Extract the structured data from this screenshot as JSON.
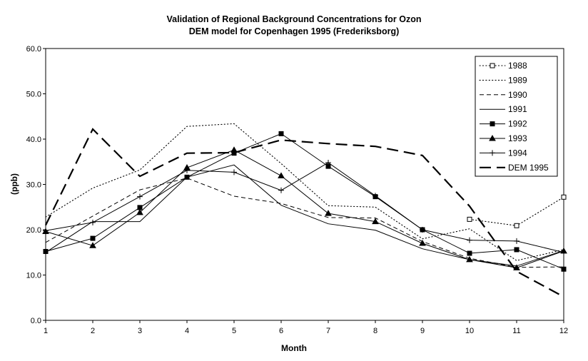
{
  "chart_data": {
    "type": "line",
    "title": "Validation of Regional Background Concentrations for Ozon",
    "subtitle": "DEM model for Copenhagen 1995 (Frederiksborg)",
    "xlabel": "Month",
    "ylabel": "(ppb)",
    "xlim": [
      1,
      12
    ],
    "ylim": [
      0,
      60
    ],
    "x": [
      1,
      2,
      3,
      4,
      5,
      6,
      7,
      8,
      9,
      10,
      11,
      12
    ],
    "x_ticks": [
      "1",
      "2",
      "3",
      "4",
      "5",
      "6",
      "7",
      "8",
      "9",
      "10",
      "11",
      "12"
    ],
    "y_ticks": [
      "0.0",
      "10.0",
      "20.0",
      "30.0",
      "40.0",
      "50.0",
      "60.0"
    ],
    "y_tick_values": [
      0,
      10,
      20,
      30,
      40,
      50,
      60
    ],
    "grid": false,
    "legend_position": "top-right",
    "series": [
      {
        "name": "1988",
        "style": "dotted",
        "marker": "square-open",
        "values": [
          null,
          null,
          null,
          null,
          null,
          null,
          null,
          null,
          null,
          22.3,
          20.9,
          27.2
        ]
      },
      {
        "name": "1989",
        "style": "dotted",
        "marker": "none",
        "values": [
          22.8,
          29.2,
          33.2,
          42.8,
          43.4,
          34.6,
          25.3,
          25.0,
          18.0,
          20.2,
          13.2,
          15.6
        ]
      },
      {
        "name": "1990",
        "style": "dashed",
        "marker": "none",
        "values": [
          17.2,
          23.0,
          28.8,
          31.4,
          27.4,
          25.8,
          22.7,
          22.6,
          17.4,
          13.7,
          11.7,
          11.8
        ]
      },
      {
        "name": "1991",
        "style": "solid",
        "marker": "none",
        "values": [
          15.0,
          21.8,
          21.8,
          31.6,
          34.3,
          25.4,
          21.3,
          19.9,
          15.8,
          13.4,
          12.0,
          15.4
        ]
      },
      {
        "name": "1992",
        "style": "solid",
        "marker": "square-filled",
        "values": [
          15.2,
          18.1,
          24.9,
          31.6,
          36.9,
          41.2,
          34.0,
          27.3,
          20.0,
          14.8,
          15.6,
          11.3
        ]
      },
      {
        "name": "1993",
        "style": "solid",
        "marker": "triangle-filled",
        "values": [
          19.6,
          16.5,
          23.8,
          33.7,
          37.6,
          31.9,
          23.6,
          21.8,
          17.0,
          13.4,
          11.6,
          15.3
        ]
      },
      {
        "name": "1994",
        "style": "solid",
        "marker": "plus",
        "values": [
          19.8,
          21.6,
          27.3,
          33.1,
          32.7,
          28.7,
          34.8,
          27.5,
          20.0,
          17.7,
          17.5,
          15.0
        ]
      },
      {
        "name": "DEM 1995",
        "style": "long-dash-bold",
        "marker": "none",
        "values": [
          21.0,
          42.2,
          31.8,
          36.9,
          37.0,
          39.8,
          39.0,
          38.4,
          36.4,
          25.2,
          10.8,
          5.2
        ]
      }
    ]
  }
}
